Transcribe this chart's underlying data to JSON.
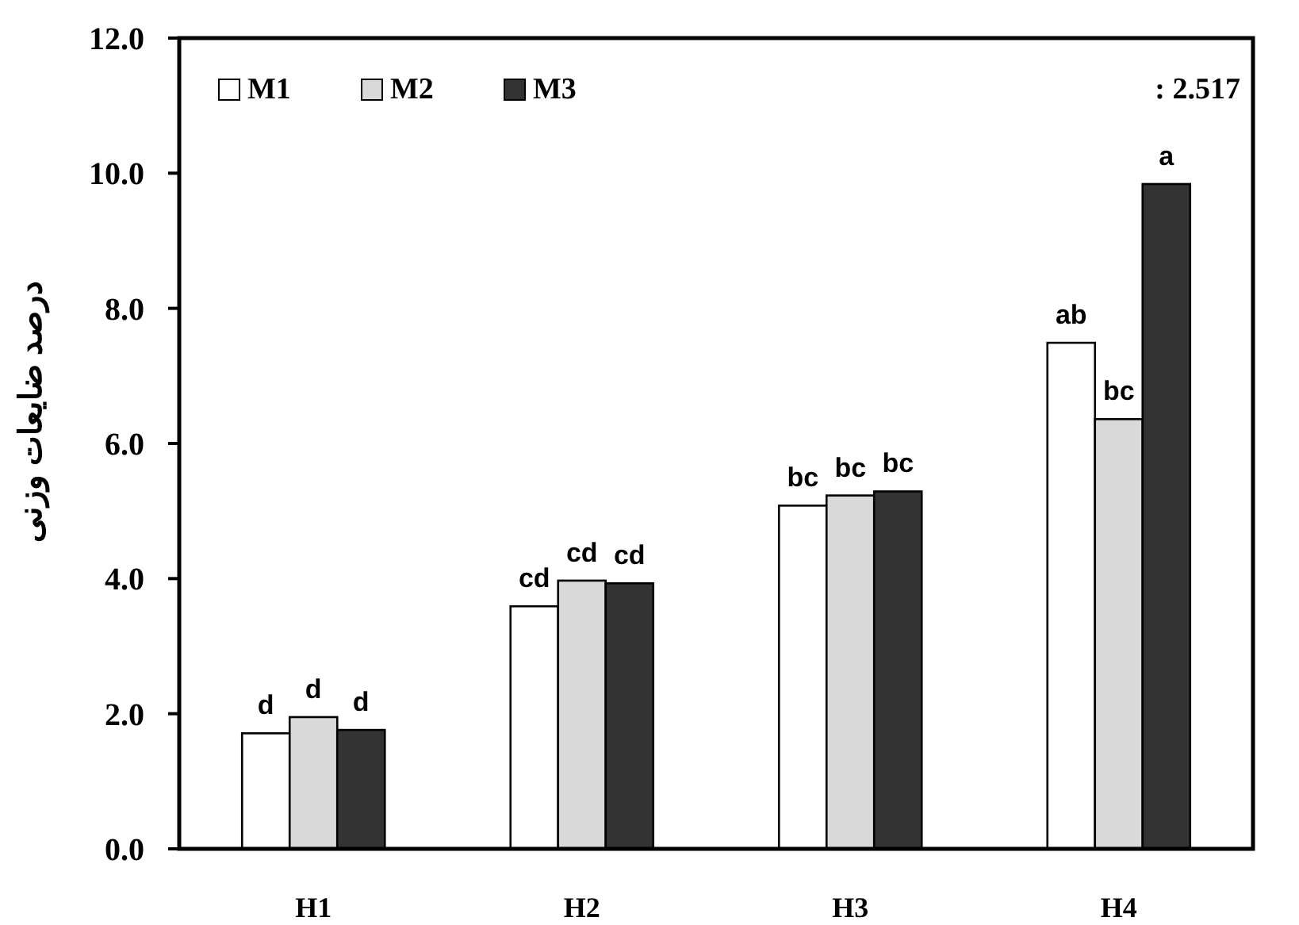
{
  "chart_data": {
    "type": "bar",
    "ylabel": "درصد ضایعات وزنی",
    "categories": [
      "H1",
      "H2",
      "H3",
      "H4"
    ],
    "series": [
      {
        "name": "M1",
        "color": "#ffffff",
        "values": [
          1.71,
          3.59,
          5.08,
          7.49
        ],
        "value_labels": [
          "d",
          "cd",
          "bc",
          "ab"
        ]
      },
      {
        "name": "M2",
        "color": "#d9d9d9",
        "values": [
          1.95,
          3.97,
          5.23,
          6.36
        ],
        "value_labels": [
          "d",
          "cd",
          "bc",
          "bc"
        ]
      },
      {
        "name": "M3",
        "color": "#333333",
        "values": [
          1.76,
          3.93,
          5.29,
          9.84
        ],
        "value_labels": [
          "d",
          "cd",
          "bc",
          "a"
        ]
      }
    ],
    "ylim": [
      0,
      12
    ],
    "yticks": [
      {
        "value": 0,
        "label": "0.0"
      },
      {
        "value": 2,
        "label": "2.0"
      },
      {
        "value": 4,
        "label": "4.0"
      },
      {
        "value": 6,
        "label": "6.0"
      },
      {
        "value": 8,
        "label": "8.0"
      },
      {
        "value": 10,
        "label": "10.0"
      },
      {
        "value": 12,
        "label": "12.0"
      }
    ],
    "grid": false,
    "legend": "top left",
    "annotations": [
      ": 2.517"
    ]
  }
}
